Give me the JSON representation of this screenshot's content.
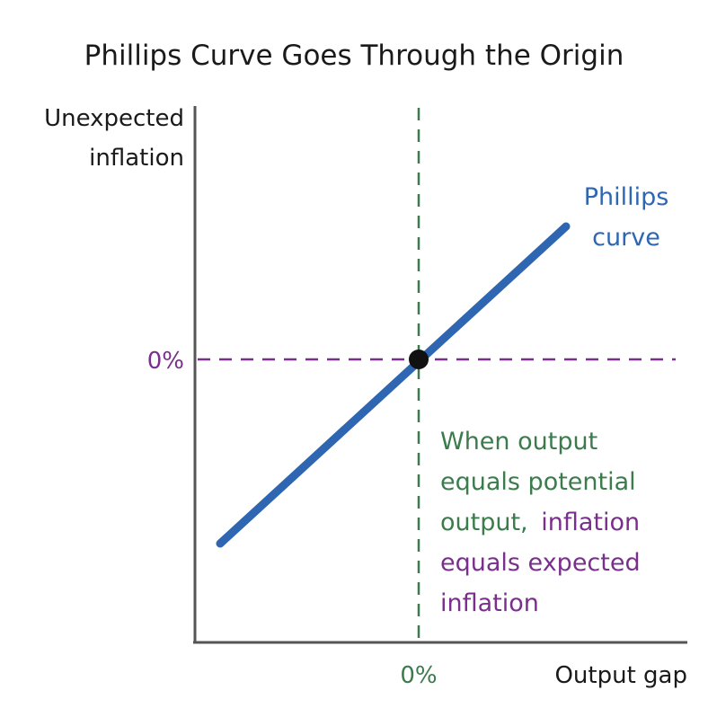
{
  "title": "Phillips Curve Goes Through the Origin",
  "y_axis_label": [
    "Unexpected",
    "inflation"
  ],
  "x_axis_label": "Output gap",
  "y_zero_label": "0%",
  "x_zero_label": "0%",
  "curve_label": [
    "Phillips",
    "curve"
  ],
  "annotation": {
    "lines": [
      [
        "When output"
      ],
      [
        "equals potential"
      ],
      [
        "output,",
        "inflation"
      ],
      [
        "equals expected"
      ],
      [
        "inflation"
      ]
    ]
  }
}
